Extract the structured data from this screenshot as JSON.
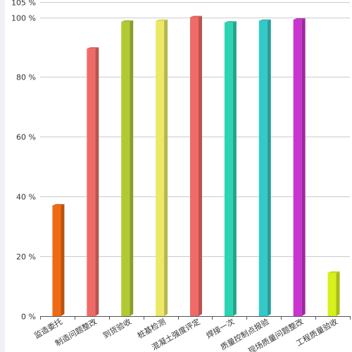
{
  "chart_data": {
    "type": "bar",
    "title": "",
    "xlabel": "",
    "ylabel": "",
    "ylim": [
      0,
      105
    ],
    "y_ticks": [
      {
        "value": 0,
        "label": "0 %"
      },
      {
        "value": 20,
        "label": "20 %"
      },
      {
        "value": 40,
        "label": "40 %"
      },
      {
        "value": 60,
        "label": "60 %"
      },
      {
        "value": 80,
        "label": "80 %"
      },
      {
        "value": 100,
        "label": "100 %"
      },
      {
        "value": 105,
        "label": "105 %"
      }
    ],
    "grid": true,
    "categories": [
      "监造委托",
      "制造问题整改",
      "到货验收",
      "桩基检测",
      "混凝土强度评定",
      "焊接一次",
      "质量控制点报验",
      "现场质量问题整改",
      "工程质量验收"
    ],
    "values": [
      37,
      89.5,
      98.5,
      98.8,
      100,
      98.2,
      98.8,
      99.2,
      14.5
    ],
    "colors": [
      "#f06a14",
      "#f06b67",
      "#b1ca34",
      "#ebe965",
      "#f06b67",
      "#2dd4b3",
      "#33c9c8",
      "#c935ce",
      "#d6f11b"
    ]
  }
}
